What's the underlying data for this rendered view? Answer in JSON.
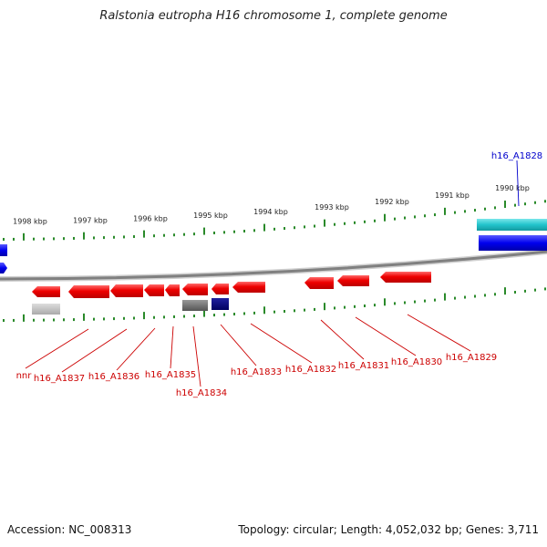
{
  "title": "Ralstonia eutropha H16 chromosome 1, complete genome",
  "footer": {
    "accession": "Accession: NC_008313",
    "topology": "Topology: circular; Length: 4,052,032 bp; Genes: 3,711"
  },
  "colors": {
    "forward_gene": "#0000ee",
    "forward_cds": "#22c4cc",
    "reverse_gene": "#ee0000",
    "reverse_label": "#cc0000",
    "forward_label": "#0000cc",
    "gray_feature": "#777777",
    "light_gray_feature": "#bbbbbb",
    "navy_feature": "#000080",
    "ticks": "#2a8a2a",
    "backbone": "#888888"
  },
  "scale_labels": [
    "1998 kbp",
    "1997 kbp",
    "1996 kbp",
    "1995 kbp",
    "1994 kbp",
    "1993 kbp",
    "1992 kbp",
    "1991 kbp",
    "1990 kbp"
  ],
  "forward_labels": [
    "h16_A1828"
  ],
  "reverse_labels": [
    "nnr",
    "h16_A1837",
    "h16_A1836",
    "h16_A1835",
    "h16_A1834",
    "h16_A1833",
    "h16_A1832",
    "h16_A1831",
    "h16_A1830",
    "h16_A1829"
  ]
}
